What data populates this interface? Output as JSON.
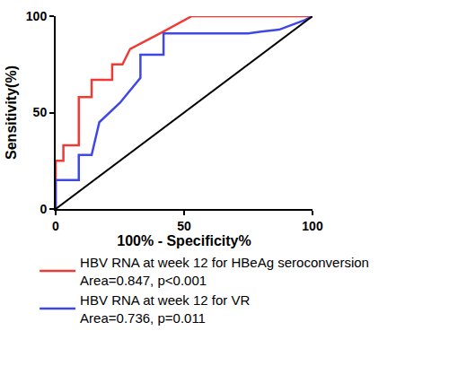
{
  "chart_data": {
    "type": "line",
    "x_label": "100% - Specificity%",
    "y_label": "Sensitivity(%)",
    "xlim": [
      0,
      100
    ],
    "ylim": [
      0,
      100
    ],
    "xticks": [
      0,
      50,
      100
    ],
    "yticks": [
      0,
      50,
      100
    ],
    "grid": false,
    "legend": "bottom",
    "series": [
      {
        "name": "HBV RNA at week 12 for HBeAg seroconversion",
        "annotation": "Area=0.847, p<0.001",
        "color": "#ef3b36",
        "line_style": "solid",
        "x": [
          0,
          0,
          3,
          3,
          9,
          9,
          14,
          14,
          22,
          22,
          26,
          29,
          42,
          53,
          100
        ],
        "values": [
          0,
          25,
          25,
          33,
          33,
          58,
          58,
          67,
          67,
          75,
          75,
          83,
          92,
          100,
          100
        ]
      },
      {
        "name": "HBV RNA at week 12 for VR",
        "annotation": "Area=0.736, p=0.011",
        "color": "#3f48e6",
        "line_style": "solid",
        "x": [
          0,
          0,
          9,
          9,
          14,
          17,
          25,
          33,
          33,
          42,
          42,
          75,
          80,
          87,
          93,
          97,
          100
        ],
        "values": [
          0,
          15,
          15,
          28,
          28,
          45,
          55,
          68,
          80,
          80,
          91,
          91,
          92,
          93,
          96,
          98,
          100
        ]
      },
      {
        "color": "#000000",
        "line_style": "solid",
        "x": [
          0,
          100
        ],
        "values": [
          0,
          100
        ]
      }
    ]
  }
}
